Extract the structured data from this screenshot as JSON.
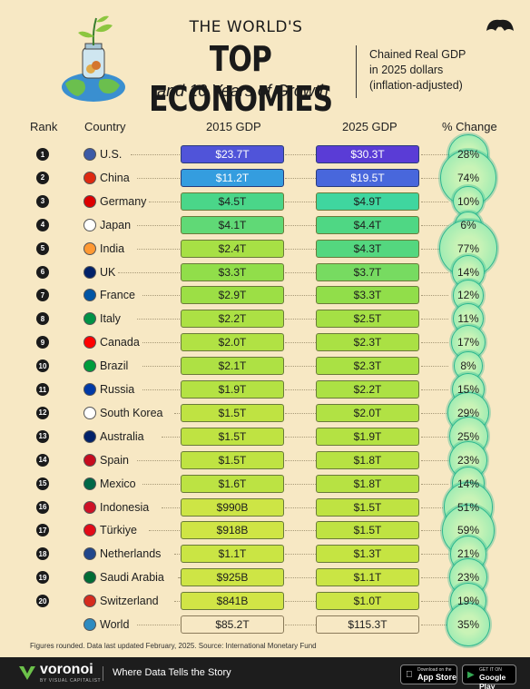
{
  "header": {
    "title_line1": "THE WORLD'S",
    "title_line2": "TOP ECONOMIES",
    "title_line3": "and 10 Years of Growth",
    "subtitle_line1": "Chained Real GDP",
    "subtitle_line2": "in 2025 dollars",
    "subtitle_line3": "(inflation-adjusted)"
  },
  "columns": {
    "rank": "Rank",
    "country": "Country",
    "gdp2015": "2015 GDP",
    "gdp2025": "2025 GDP",
    "change": "% Change"
  },
  "chart_data": {
    "type": "table",
    "title": "The World's Top Economies and 10 Years of Growth",
    "subtitle": "Chained Real GDP in 2025 dollars (inflation-adjusted)",
    "units": "USD trillions",
    "rows": [
      {
        "rank": "1",
        "country": "U.S.",
        "gdp2015_label": "$23.7T",
        "gdp2025_label": "$30.3T",
        "gdp2015": 23.7,
        "gdp2025": 30.3,
        "change": 28,
        "change_label": "28%"
      },
      {
        "rank": "2",
        "country": "China",
        "gdp2015_label": "$11.2T",
        "gdp2025_label": "$19.5T",
        "gdp2015": 11.2,
        "gdp2025": 19.5,
        "change": 74,
        "change_label": "74%"
      },
      {
        "rank": "3",
        "country": "Germany",
        "gdp2015_label": "$4.5T",
        "gdp2025_label": "$4.9T",
        "gdp2015": 4.5,
        "gdp2025": 4.9,
        "change": 10,
        "change_label": "10%"
      },
      {
        "rank": "4",
        "country": "Japan",
        "gdp2015_label": "$4.1T",
        "gdp2025_label": "$4.4T",
        "gdp2015": 4.1,
        "gdp2025": 4.4,
        "change": 6,
        "change_label": "6%"
      },
      {
        "rank": "5",
        "country": "India",
        "gdp2015_label": "$2.4T",
        "gdp2025_label": "$4.3T",
        "gdp2015": 2.4,
        "gdp2025": 4.3,
        "change": 77,
        "change_label": "77%"
      },
      {
        "rank": "6",
        "country": "UK",
        "gdp2015_label": "$3.3T",
        "gdp2025_label": "$3.7T",
        "gdp2015": 3.3,
        "gdp2025": 3.7,
        "change": 14,
        "change_label": "14%"
      },
      {
        "rank": "7",
        "country": "France",
        "gdp2015_label": "$2.9T",
        "gdp2025_label": "$3.3T",
        "gdp2015": 2.9,
        "gdp2025": 3.3,
        "change": 12,
        "change_label": "12%"
      },
      {
        "rank": "8",
        "country": "Italy",
        "gdp2015_label": "$2.2T",
        "gdp2025_label": "$2.5T",
        "gdp2015": 2.2,
        "gdp2025": 2.5,
        "change": 11,
        "change_label": "11%"
      },
      {
        "rank": "9",
        "country": "Canada",
        "gdp2015_label": "$2.0T",
        "gdp2025_label": "$2.3T",
        "gdp2015": 2.0,
        "gdp2025": 2.3,
        "change": 17,
        "change_label": "17%"
      },
      {
        "rank": "10",
        "country": "Brazil",
        "gdp2015_label": "$2.1T",
        "gdp2025_label": "$2.3T",
        "gdp2015": 2.1,
        "gdp2025": 2.3,
        "change": 8,
        "change_label": "8%"
      },
      {
        "rank": "11",
        "country": "Russia",
        "gdp2015_label": "$1.9T",
        "gdp2025_label": "$2.2T",
        "gdp2015": 1.9,
        "gdp2025": 2.2,
        "change": 15,
        "change_label": "15%"
      },
      {
        "rank": "12",
        "country": "South Korea",
        "gdp2015_label": "$1.5T",
        "gdp2025_label": "$2.0T",
        "gdp2015": 1.5,
        "gdp2025": 2.0,
        "change": 29,
        "change_label": "29%"
      },
      {
        "rank": "13",
        "country": "Australia",
        "gdp2015_label": "$1.5T",
        "gdp2025_label": "$1.9T",
        "gdp2015": 1.5,
        "gdp2025": 1.9,
        "change": 25,
        "change_label": "25%"
      },
      {
        "rank": "14",
        "country": "Spain",
        "gdp2015_label": "$1.5T",
        "gdp2025_label": "$1.8T",
        "gdp2015": 1.5,
        "gdp2025": 1.8,
        "change": 23,
        "change_label": "23%"
      },
      {
        "rank": "15",
        "country": "Mexico",
        "gdp2015_label": "$1.6T",
        "gdp2025_label": "$1.8T",
        "gdp2015": 1.6,
        "gdp2025": 1.8,
        "change": 14,
        "change_label": "14%"
      },
      {
        "rank": "16",
        "country": "Indonesia",
        "gdp2015_label": "$990B",
        "gdp2025_label": "$1.5T",
        "gdp2015": 0.99,
        "gdp2025": 1.5,
        "change": 51,
        "change_label": "51%"
      },
      {
        "rank": "17",
        "country": "Türkiye",
        "gdp2015_label": "$918B",
        "gdp2025_label": "$1.5T",
        "gdp2015": 0.918,
        "gdp2025": 1.5,
        "change": 59,
        "change_label": "59%"
      },
      {
        "rank": "18",
        "country": "Netherlands",
        "gdp2015_label": "$1.1T",
        "gdp2025_label": "$1.3T",
        "gdp2015": 1.1,
        "gdp2025": 1.3,
        "change": 21,
        "change_label": "21%"
      },
      {
        "rank": "19",
        "country": "Saudi Arabia",
        "gdp2015_label": "$925B",
        "gdp2025_label": "$1.1T",
        "gdp2015": 0.925,
        "gdp2025": 1.1,
        "change": 23,
        "change_label": "23%"
      },
      {
        "rank": "20",
        "country": "Switzerland",
        "gdp2015_label": "$841B",
        "gdp2025_label": "$1.0T",
        "gdp2015": 0.841,
        "gdp2025": 1.0,
        "change": 19,
        "change_label": "19%"
      },
      {
        "rank": "",
        "country": "World",
        "gdp2015_label": "$85.2T",
        "gdp2025_label": "$115.3T",
        "gdp2015": 85.2,
        "gdp2025": 115.3,
        "change": 35,
        "change_label": "35%"
      }
    ],
    "flag_colors": {
      "U.S.": "#3c5aa6",
      "China": "#de2910",
      "Germany": "#dd0000",
      "Japan": "#ffffff",
      "India": "#ff9933",
      "UK": "#012169",
      "France": "#0055a4",
      "Italy": "#009246",
      "Canada": "#ff0000",
      "Brazil": "#009c3b",
      "Russia": "#0039a6",
      "South Korea": "#ffffff",
      "Australia": "#012169",
      "Spain": "#c60b1e",
      "Mexico": "#006847",
      "Indonesia": "#ce1126",
      "Türkiye": "#e30a17",
      "Netherlands": "#21468b",
      "Saudi Arabia": "#006c35",
      "Switzerland": "#d52b1e",
      "World": "#2e8bc0"
    }
  },
  "footnote": "Figures rounded. Data last updated February, 2025. Source: International Monetary Fund",
  "footer": {
    "brand": "voronoi",
    "brand_sub": "BY VISUAL CAPITALIST",
    "tagline": "Where Data Tells the Story",
    "app_store_small": "Download on the",
    "app_store_big": "App Store",
    "google_small": "GET IT ON",
    "google_big": "Google Play"
  }
}
